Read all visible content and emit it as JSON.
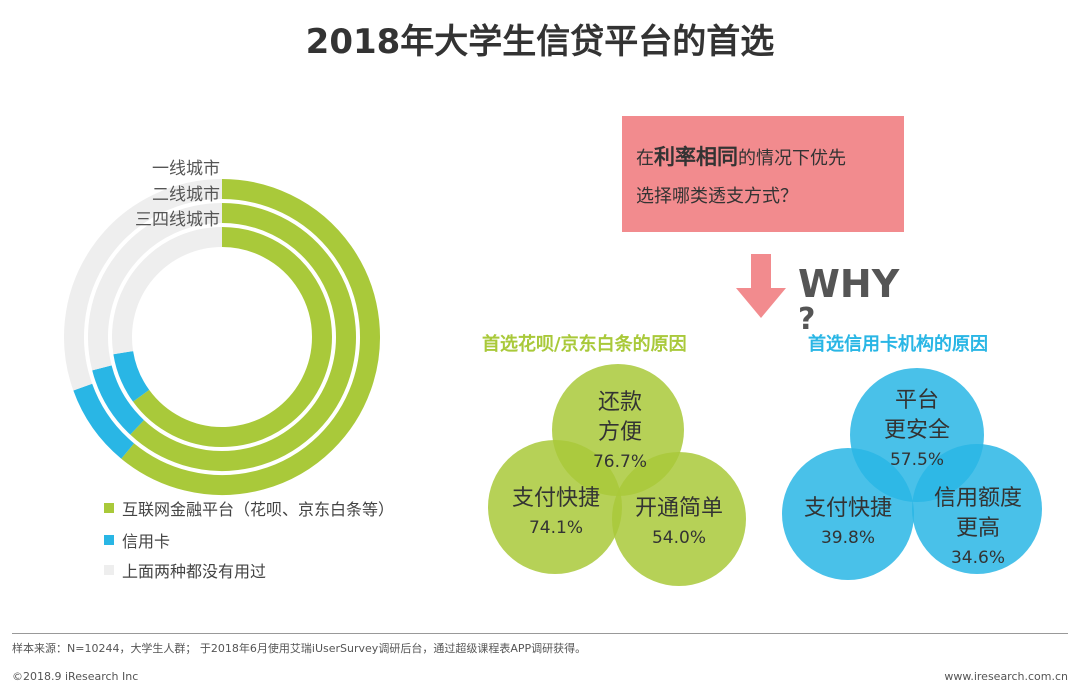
{
  "title": "2018年大学生信贷平台的首选",
  "colors": {
    "green": "#a9c93a",
    "blue": "#29b6e5",
    "gray": "#eeeeee",
    "pink": "#f28b8e",
    "bubble_green": "#a9c93a",
    "bubble_blue": "#33bbe8"
  },
  "chart_data": {
    "type": "nested-donut",
    "rings": [
      {
        "name": "一线城市",
        "values": {
          "互联网金融平台": 61.0,
          "信用卡": 8.5,
          "没有用过": 30.5
        }
      },
      {
        "name": "二线城市",
        "values": {
          "互联网金融平台": 62.0,
          "信用卡": 9.0,
          "没有用过": 29.0
        }
      },
      {
        "name": "三四线城市",
        "values": {
          "互联网金融平台": 65.0,
          "信用卡": 7.5,
          "没有用过": 27.5
        }
      }
    ],
    "legend": [
      "互联网金融平台（花呗、京东白条等）",
      "信用卡",
      "上面两种都没有用过"
    ]
  },
  "question": {
    "pre": "在",
    "bold": "利率相同",
    "post": "的情况下优先",
    "line2": "选择哪类透支方式？"
  },
  "why": {
    "word": "WHY",
    "mark": "?"
  },
  "left_group": {
    "title": "首选花呗/京东白条的原因",
    "items": [
      {
        "label1": "还款",
        "label2": "方便",
        "value": "76.7%"
      },
      {
        "label1": "支付快捷",
        "label2": "",
        "value": "74.1%"
      },
      {
        "label1": "开通简单",
        "label2": "",
        "value": "54.0%"
      }
    ]
  },
  "right_group": {
    "title": "首选信用卡机构的原因",
    "items": [
      {
        "label1": "平台",
        "label2": "更安全",
        "value": "57.5%"
      },
      {
        "label1": "支付快捷",
        "label2": "",
        "value": "39.8%"
      },
      {
        "label1": "信用额度",
        "label2": "更高",
        "value": "34.6%"
      }
    ]
  },
  "footer": {
    "note": "样本来源：N=10244，大学生人群； 于2018年6月使用艾瑞iUserSurvey调研后台，通过超级课程表APP调研获得。",
    "copyright": "©2018.9 iResearch Inc",
    "site": "www.iresearch.com.cn"
  }
}
